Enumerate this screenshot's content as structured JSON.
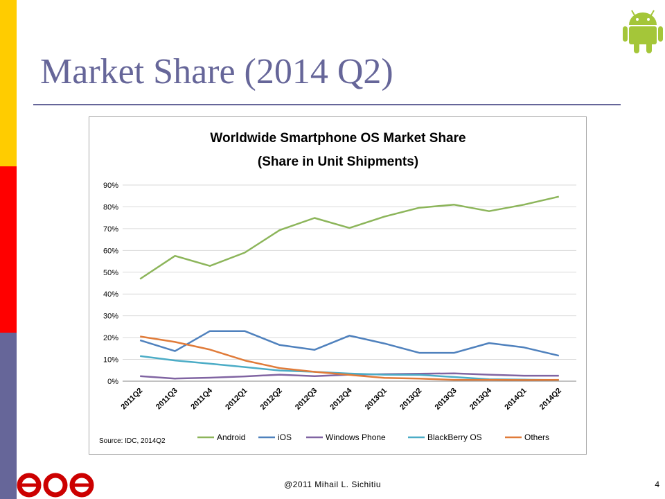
{
  "slide": {
    "title": "Market Share (2014 Q2)",
    "footer": "@2011 Mihail L. Sichitiu",
    "page_number": "4",
    "logo_text": "ece"
  },
  "colors": {
    "accent": "#666699",
    "bar_yellow": "#ffcc00",
    "bar_red": "#ff0000",
    "bar_purple": "#666699",
    "android_green": "#a4c639",
    "logo_red": "#cc0000"
  },
  "chart_data": {
    "type": "line",
    "title": "Worldwide Smartphone OS Market Share",
    "subtitle": "(Share in Unit Shipments)",
    "source": "Source: IDC, 2014Q2",
    "categories": [
      "2011Q2",
      "2011Q3",
      "2011Q4",
      "2012Q1",
      "2012Q2",
      "2012Q3",
      "2012Q4",
      "2013Q1",
      "2013Q2",
      "2013Q3",
      "2013Q4",
      "2014Q1",
      "2014Q2"
    ],
    "y_ticks": [
      "0%",
      "10%",
      "20%",
      "30%",
      "40%",
      "50%",
      "60%",
      "70%",
      "80%",
      "90%"
    ],
    "ylim": [
      0,
      90
    ],
    "grid": true,
    "legend_position": "bottom",
    "series": [
      {
        "name": "Android",
        "color": "#8cb55a",
        "values": [
          46.9,
          57.5,
          52.9,
          59.0,
          69.3,
          74.9,
          70.3,
          75.5,
          79.6,
          81.0,
          78.0,
          81.0,
          84.7
        ]
      },
      {
        "name": "iOS",
        "color": "#4f81bd",
        "values": [
          18.8,
          13.8,
          23.0,
          23.0,
          16.6,
          14.4,
          20.9,
          17.3,
          13.0,
          13.0,
          17.5,
          15.5,
          11.7
        ]
      },
      {
        "name": "Windows Phone",
        "color": "#8064a2",
        "values": [
          2.3,
          1.2,
          1.6,
          2.2,
          3.0,
          2.3,
          3.0,
          3.2,
          3.4,
          3.6,
          3.0,
          2.5,
          2.5
        ]
      },
      {
        "name": "BlackBerry OS",
        "color": "#4bacc6",
        "values": [
          11.5,
          9.5,
          8.0,
          6.5,
          4.9,
          4.3,
          3.5,
          3.0,
          2.9,
          1.9,
          0.9,
          0.7,
          0.5
        ]
      },
      {
        "name": "Others",
        "color": "#e07b39",
        "values": [
          20.5,
          18.0,
          14.5,
          9.5,
          6.0,
          4.3,
          2.9,
          1.5,
          1.2,
          0.6,
          0.6,
          0.5,
          0.6
        ]
      }
    ]
  }
}
